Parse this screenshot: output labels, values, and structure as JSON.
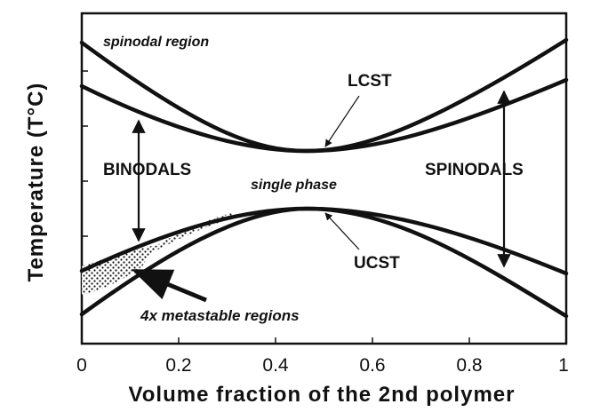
{
  "axes": {
    "xlabel": "Volume fraction of the 2nd polymer",
    "ylabel": "Temperature (T°C)",
    "x_ticks": [
      "0",
      "0.2",
      "0.4",
      "0.6",
      "0.8",
      "1"
    ]
  },
  "labels": {
    "spinodal_region": "spinodal region",
    "lcst": "LCST",
    "binodals": "BINODALS",
    "single_phase": "single phase",
    "spinodals": "SPINODALS",
    "ucst": "UCST",
    "metastable": "4x metastable regions"
  }
}
